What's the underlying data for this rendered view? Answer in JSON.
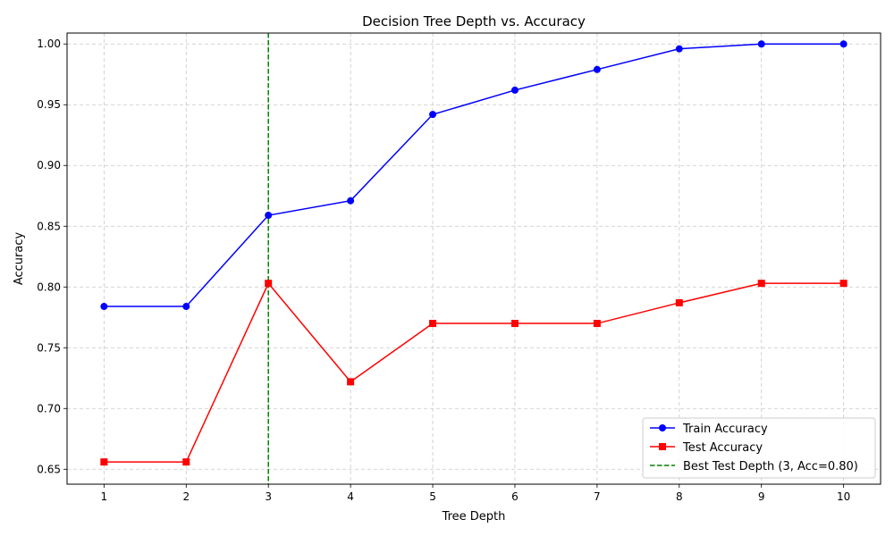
{
  "chart_data": {
    "type": "line",
    "title": "Decision Tree Depth vs. Accuracy",
    "xlabel": "Tree Depth",
    "ylabel": "Accuracy",
    "x": [
      1,
      2,
      3,
      4,
      5,
      6,
      7,
      8,
      9,
      10
    ],
    "xlim": [
      0.55,
      10.45
    ],
    "ylim": [
      0.6377,
      1.009
    ],
    "yticks": [
      0.65,
      0.7,
      0.75,
      0.8,
      0.85,
      0.9,
      0.95,
      1.0
    ],
    "ytick_labels": [
      "0.65",
      "0.70",
      "0.75",
      "0.80",
      "0.85",
      "0.90",
      "0.95",
      "1.00"
    ],
    "grid": true,
    "legend_position": "lower-right",
    "series": [
      {
        "name": "Train Accuracy",
        "color": "#0000ff",
        "marker": "circle",
        "values": [
          0.784,
          0.784,
          0.859,
          0.871,
          0.942,
          0.962,
          0.979,
          0.996,
          1.0,
          1.0
        ]
      },
      {
        "name": "Test Accuracy",
        "color": "#ff0000",
        "marker": "square",
        "values": [
          0.656,
          0.656,
          0.803,
          0.722,
          0.77,
          0.77,
          0.77,
          0.787,
          0.803,
          0.803
        ]
      }
    ],
    "reference_line": {
      "name": "Best Test Depth (3, Acc=0.80)",
      "x": 3,
      "color": "#008000",
      "style": "dashed"
    }
  }
}
